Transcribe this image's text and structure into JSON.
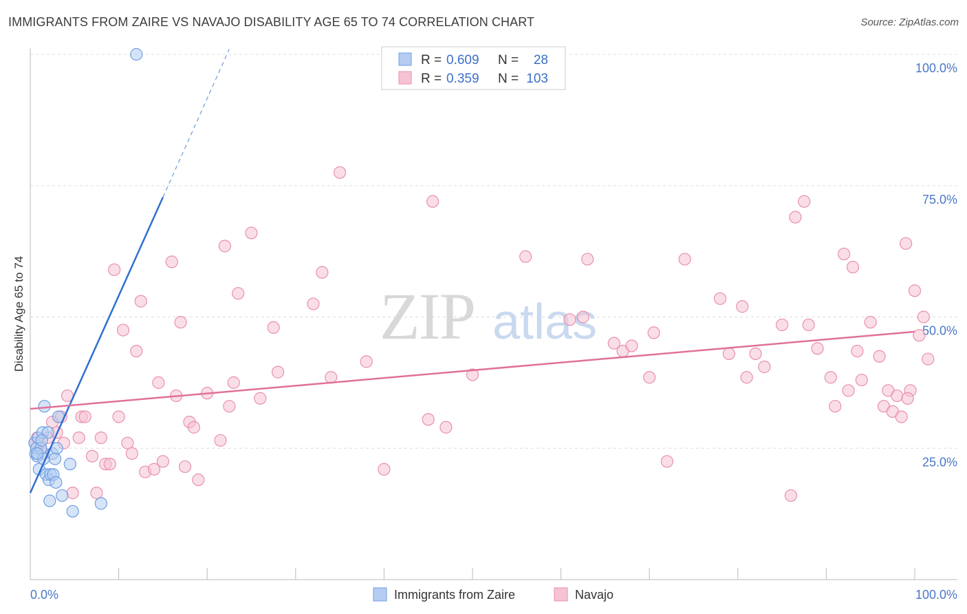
{
  "title": "IMMIGRANTS FROM ZAIRE VS NAVAJO DISABILITY AGE 65 TO 74 CORRELATION CHART",
  "source": "Source: ZipAtlas.com",
  "watermark": {
    "zip": "ZIP",
    "atlas": "atlas"
  },
  "colors": {
    "blue_fill": "#b5cdf2",
    "blue_stroke": "#6e9ee0",
    "blue_line": "#2f6fcf",
    "pink_fill": "#f6c3d3",
    "pink_stroke": "#e98fac",
    "pink_line": "#e0709a",
    "grid": "#dddddd",
    "axis_text": "#4a78c8"
  },
  "legend": {
    "rows": [
      {
        "r_label": "R =",
        "r_value": "0.609",
        "n_label": "N =",
        "n_value": "28"
      },
      {
        "r_label": "R =",
        "r_value": "0.359",
        "n_label": "N =",
        "n_value": "103"
      }
    ]
  },
  "chart_data": {
    "type": "scatter",
    "title": "IMMIGRANTS FROM ZAIRE VS NAVAJO DISABILITY AGE 65 TO 74 CORRELATION CHART",
    "xlabel": "",
    "ylabel": "Disability Age 65 to 74",
    "xlim": [
      0,
      100
    ],
    "ylim": [
      0,
      100
    ],
    "x_tick_labels": [
      "0.0%",
      "100.0%"
    ],
    "y_ticks": [
      25,
      50,
      75,
      100
    ],
    "y_tick_labels": [
      "25.0%",
      "50.0%",
      "75.0%",
      "100.0%"
    ],
    "series": [
      {
        "name": "Immigrants from Zaire",
        "color": "blue",
        "r": 0.609,
        "n": 28,
        "trend": {
          "x0": 0,
          "y0": 16.5,
          "x1": 15,
          "y1": 72.8,
          "dash_x1": 22.5,
          "dash_y1": 101
        },
        "points": [
          [
            0.5,
            26
          ],
          [
            0.6,
            24
          ],
          [
            0.7,
            25
          ],
          [
            0.8,
            23.5
          ],
          [
            0.9,
            27
          ],
          [
            1.0,
            21
          ],
          [
            1.2,
            25
          ],
          [
            1.4,
            28
          ],
          [
            1.5,
            23
          ],
          [
            1.6,
            33
          ],
          [
            1.8,
            20
          ],
          [
            2.0,
            28
          ],
          [
            2.1,
            19
          ],
          [
            2.2,
            15
          ],
          [
            2.3,
            20
          ],
          [
            2.5,
            24
          ],
          [
            2.6,
            20
          ],
          [
            2.8,
            23
          ],
          [
            2.9,
            18.5
          ],
          [
            3.0,
            25
          ],
          [
            3.2,
            31
          ],
          [
            3.6,
            16
          ],
          [
            4.5,
            22
          ],
          [
            4.8,
            13
          ],
          [
            8.0,
            14.5
          ],
          [
            12.0,
            100
          ],
          [
            0.8,
            24
          ],
          [
            1.3,
            26.5
          ]
        ]
      },
      {
        "name": "Navajo",
        "color": "pink",
        "r": 0.359,
        "n": 103,
        "trend": {
          "x0": 0,
          "y0": 32.5,
          "x1": 100,
          "y1": 47.2
        },
        "points": [
          [
            0.5,
            26
          ],
          [
            0.8,
            27
          ],
          [
            1.2,
            25
          ],
          [
            1.5,
            24
          ],
          [
            2.0,
            27
          ],
          [
            2.5,
            30
          ],
          [
            3.0,
            28
          ],
          [
            3.5,
            31
          ],
          [
            3.8,
            26
          ],
          [
            4.2,
            35
          ],
          [
            4.8,
            16.5
          ],
          [
            5.5,
            27
          ],
          [
            5.8,
            31
          ],
          [
            6.2,
            31
          ],
          [
            7.0,
            23.5
          ],
          [
            7.5,
            16.5
          ],
          [
            8.0,
            27
          ],
          [
            8.5,
            22
          ],
          [
            9.0,
            22
          ],
          [
            9.5,
            59
          ],
          [
            10.0,
            31
          ],
          [
            10.5,
            47.5
          ],
          [
            11.0,
            26
          ],
          [
            11.5,
            24
          ],
          [
            12.0,
            43.5
          ],
          [
            12.5,
            53
          ],
          [
            13.0,
            20.5
          ],
          [
            14.0,
            21
          ],
          [
            14.5,
            37.5
          ],
          [
            15.0,
            22.5
          ],
          [
            16.0,
            60.5
          ],
          [
            16.5,
            35
          ],
          [
            17.0,
            49
          ],
          [
            17.5,
            21.5
          ],
          [
            18.0,
            30
          ],
          [
            18.5,
            29
          ],
          [
            19.0,
            19
          ],
          [
            20.0,
            35.5
          ],
          [
            21.5,
            26.5
          ],
          [
            22.0,
            63.5
          ],
          [
            22.5,
            33
          ],
          [
            23.0,
            37.5
          ],
          [
            23.5,
            54.5
          ],
          [
            25.0,
            66
          ],
          [
            26.0,
            34.5
          ],
          [
            27.5,
            48
          ],
          [
            28.0,
            39.5
          ],
          [
            32.0,
            52.5
          ],
          [
            33.0,
            58.5
          ],
          [
            34.0,
            38.5
          ],
          [
            35.0,
            77.5
          ],
          [
            38.0,
            41.5
          ],
          [
            40.0,
            21
          ],
          [
            45.5,
            72
          ],
          [
            45.0,
            30.5
          ],
          [
            47.0,
            29
          ],
          [
            50.0,
            39
          ],
          [
            56.0,
            61.5
          ],
          [
            61.0,
            49.5
          ],
          [
            62.5,
            50
          ],
          [
            63.0,
            61
          ],
          [
            66.0,
            45
          ],
          [
            67.0,
            43.5
          ],
          [
            68.0,
            44.5
          ],
          [
            70.0,
            38.5
          ],
          [
            70.5,
            47
          ],
          [
            72.0,
            22.5
          ],
          [
            74.0,
            61
          ],
          [
            78.0,
            53.5
          ],
          [
            79.0,
            43
          ],
          [
            80.5,
            52
          ],
          [
            81.0,
            38.5
          ],
          [
            82.0,
            43
          ],
          [
            83.0,
            40.5
          ],
          [
            85.0,
            48.5
          ],
          [
            86.0,
            16
          ],
          [
            86.5,
            69
          ],
          [
            87.5,
            72
          ],
          [
            88.0,
            48.5
          ],
          [
            89.0,
            44
          ],
          [
            90.5,
            38.5
          ],
          [
            91.0,
            33
          ],
          [
            92.0,
            62
          ],
          [
            92.5,
            36
          ],
          [
            93.0,
            59.5
          ],
          [
            93.5,
            43.5
          ],
          [
            94.0,
            38
          ],
          [
            95.0,
            49
          ],
          [
            96.0,
            42.5
          ],
          [
            96.5,
            33
          ],
          [
            97.0,
            36
          ],
          [
            97.5,
            32
          ],
          [
            98.0,
            35
          ],
          [
            98.5,
            31
          ],
          [
            99.0,
            64
          ],
          [
            99.5,
            36
          ],
          [
            100.0,
            55
          ],
          [
            100.5,
            46.5
          ],
          [
            101.0,
            50
          ],
          [
            101.5,
            42
          ],
          [
            99.2,
            34.5
          ]
        ]
      }
    ]
  },
  "bottom_legend": [
    {
      "label": "Immigrants from Zaire"
    },
    {
      "label": "Navajo"
    }
  ]
}
